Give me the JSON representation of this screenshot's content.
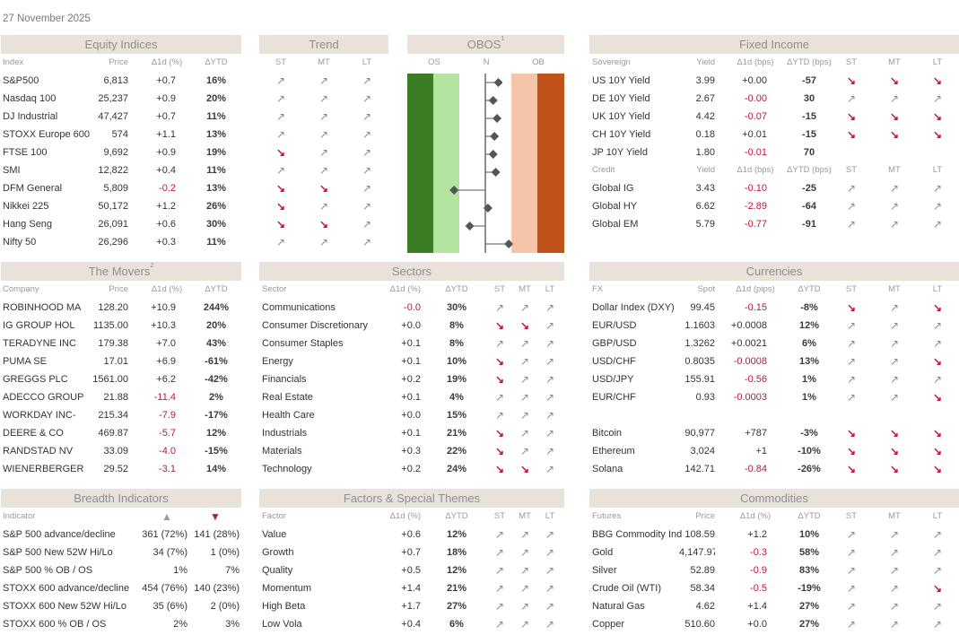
{
  "date": "27 November 2025",
  "colors": {
    "header_bg": "#e8e2da",
    "negative": "#c0143c",
    "os_dark": "#3a7d24",
    "os_light": "#b4e5a0",
    "ob_light": "#f5c5aa",
    "ob_dark": "#c0531a"
  },
  "icons": {
    "up": "↗",
    "down": "↘"
  },
  "equity": {
    "title": "Equity Indices",
    "headers": [
      "Index",
      "Price",
      "Δ1d (%)",
      "ΔYTD",
      "ST",
      "MT",
      "LT"
    ],
    "rows": [
      {
        "name": "S&P500",
        "price": "6,813",
        "d1": "+0.7",
        "ytd": "16%",
        "st": "up",
        "mt": "up",
        "lt": "up"
      },
      {
        "name": "Nasdaq 100",
        "price": "25,237",
        "d1": "+0.9",
        "ytd": "20%",
        "st": "up",
        "mt": "up",
        "lt": "up"
      },
      {
        "name": "DJ Industrial",
        "price": "47,427",
        "d1": "+0.7",
        "ytd": "11%",
        "st": "up",
        "mt": "up",
        "lt": "up"
      },
      {
        "name": "STOXX Europe 600",
        "price": "574",
        "d1": "+1.1",
        "ytd": "13%",
        "st": "up",
        "mt": "up",
        "lt": "up"
      },
      {
        "name": "FTSE 100",
        "price": "9,692",
        "d1": "+0.9",
        "ytd": "19%",
        "st": "down",
        "mt": "up",
        "lt": "up"
      },
      {
        "name": "SMI",
        "price": "12,822",
        "d1": "+0.4",
        "ytd": "11%",
        "st": "up",
        "mt": "up",
        "lt": "up"
      },
      {
        "name": "DFM General",
        "price": "5,809",
        "d1": "-0.2",
        "ytd": "13%",
        "st": "down",
        "mt": "down",
        "lt": "up"
      },
      {
        "name": "Nikkei 225",
        "price": "50,172",
        "d1": "+1.2",
        "ytd": "26%",
        "st": "down",
        "mt": "up",
        "lt": "up"
      },
      {
        "name": "Hang Seng",
        "price": "26,091",
        "d1": "+0.6",
        "ytd": "30%",
        "st": "down",
        "mt": "down",
        "lt": "up"
      },
      {
        "name": "Nifty 50",
        "price": "26,296",
        "d1": "+0.3",
        "ytd": "11%",
        "st": "up",
        "mt": "up",
        "lt": "up"
      }
    ]
  },
  "trend": {
    "title": "Trend"
  },
  "obos": {
    "title": "OBOS",
    "sup": "1",
    "labels": [
      "OS",
      "N",
      "OB"
    ],
    "values": [
      0.5,
      0.3,
      0.45,
      0.35,
      0.3,
      0.4,
      -1.2,
      0.1,
      -0.6,
      0.9
    ]
  },
  "fixed_income": {
    "title": "Fixed Income",
    "sov_headers": [
      "Sovereign",
      "Yield",
      "Δ1d (bps)",
      "ΔYTD (bps)",
      "ST",
      "MT",
      "LT"
    ],
    "sov_rows": [
      {
        "name": "US 10Y Yield",
        "v1": "3.99",
        "v2": "+0.00",
        "v3": "-57",
        "st": "down",
        "mt": "down",
        "lt": "down"
      },
      {
        "name": "DE 10Y Yield",
        "v1": "2.67",
        "v2": "-0.00",
        "v3": "30",
        "st": "up",
        "mt": "up",
        "lt": "up"
      },
      {
        "name": "UK 10Y Yield",
        "v1": "4.42",
        "v2": "-0.07",
        "v3": "-15",
        "st": "down",
        "mt": "down",
        "lt": "down"
      },
      {
        "name": "CH 10Y Yield",
        "v1": "0.18",
        "v2": "+0.01",
        "v3": "-15",
        "st": "down",
        "mt": "down",
        "lt": "down"
      },
      {
        "name": "JP 10Y Yield",
        "v1": "1.80",
        "v2": "-0.01",
        "v3": "70",
        "st": "",
        "mt": "",
        "lt": ""
      }
    ],
    "cred_headers": [
      "Credit",
      "Yield",
      "Δ1d (bps)",
      "ΔYTD (bps)",
      "ST",
      "MT",
      "LT"
    ],
    "cred_rows": [
      {
        "name": "Global IG",
        "v1": "3.43",
        "v2": "-0.10",
        "v3": "-25",
        "st": "up",
        "mt": "up",
        "lt": "up"
      },
      {
        "name": "Global HY",
        "v1": "6.62",
        "v2": "-2.89",
        "v3": "-64",
        "st": "up",
        "mt": "up",
        "lt": "up"
      },
      {
        "name": "Global EM",
        "v1": "5.79",
        "v2": "-0.77",
        "v3": "-91",
        "st": "up",
        "mt": "up",
        "lt": "up"
      }
    ]
  },
  "movers": {
    "title": "The Movers",
    "sup": "2",
    "headers": [
      "Company",
      "Price",
      "Δ1d (%)",
      "ΔYTD"
    ],
    "rows": [
      {
        "name": "ROBINHOOD MA",
        "price": "128.20",
        "d1": "+10.9",
        "ytd": "244%"
      },
      {
        "name": "IG GROUP HOL",
        "price": "1135.00",
        "d1": "+10.3",
        "ytd": "20%"
      },
      {
        "name": "TERADYNE INC",
        "price": "179.38",
        "d1": "+7.0",
        "ytd": "43%"
      },
      {
        "name": "PUMA SE",
        "price": "17.01",
        "d1": "+6.9",
        "ytd": "-61%"
      },
      {
        "name": "GREGGS PLC",
        "price": "1561.00",
        "d1": "+6.2",
        "ytd": "-42%"
      },
      {
        "name": "ADECCO GROUP",
        "price": "21.88",
        "d1": "-11.4",
        "ytd": "2%"
      },
      {
        "name": "WORKDAY INC-",
        "price": "215.34",
        "d1": "-7.9",
        "ytd": "-17%"
      },
      {
        "name": "DEERE & CO",
        "price": "469.87",
        "d1": "-5.7",
        "ytd": "12%"
      },
      {
        "name": "RANDSTAD NV",
        "price": "33.09",
        "d1": "-4.0",
        "ytd": "-15%"
      },
      {
        "name": "WIENERBERGER",
        "price": "29.52",
        "d1": "-3.1",
        "ytd": "14%"
      }
    ]
  },
  "sectors": {
    "title": "Sectors",
    "headers": [
      "Sector",
      "Δ1d (%)",
      "ΔYTD",
      "ST",
      "MT",
      "LT"
    ],
    "rows": [
      {
        "name": "Communications",
        "d1": "-0.0",
        "ytd": "30%",
        "st": "up",
        "mt": "up",
        "lt": "up"
      },
      {
        "name": "Consumer Discretionary",
        "d1": "+0.0",
        "ytd": "8%",
        "st": "down",
        "mt": "down",
        "lt": "up"
      },
      {
        "name": "Consumer Staples",
        "d1": "+0.1",
        "ytd": "8%",
        "st": "up",
        "mt": "up",
        "lt": "up"
      },
      {
        "name": "Energy",
        "d1": "+0.1",
        "ytd": "10%",
        "st": "down",
        "mt": "up",
        "lt": "up"
      },
      {
        "name": "Financials",
        "d1": "+0.2",
        "ytd": "19%",
        "st": "down",
        "mt": "up",
        "lt": "up"
      },
      {
        "name": "Real Estate",
        "d1": "+0.1",
        "ytd": "4%",
        "st": "up",
        "mt": "up",
        "lt": "up"
      },
      {
        "name": "Health Care",
        "d1": "+0.0",
        "ytd": "15%",
        "st": "up",
        "mt": "up",
        "lt": "up"
      },
      {
        "name": "Industrials",
        "d1": "+0.1",
        "ytd": "21%",
        "st": "down",
        "mt": "up",
        "lt": "up"
      },
      {
        "name": "Materials",
        "d1": "+0.3",
        "ytd": "22%",
        "st": "down",
        "mt": "up",
        "lt": "up"
      },
      {
        "name": "Technology",
        "d1": "+0.2",
        "ytd": "24%",
        "st": "down",
        "mt": "down",
        "lt": "up"
      }
    ]
  },
  "currencies": {
    "title": "Currencies",
    "headers": [
      "FX",
      "Spot",
      "Δ1d (pips)",
      "ΔYTD",
      "ST",
      "MT",
      "LT"
    ],
    "rows": [
      {
        "name": "Dollar Index (DXY)",
        "v1": "99.45",
        "v2": "-0.15",
        "v3": "-8%",
        "st": "down",
        "mt": "up",
        "lt": "down"
      },
      {
        "name": "EUR/USD",
        "v1": "1.1603",
        "v2": "+0.0008",
        "v3": "12%",
        "st": "up",
        "mt": "up",
        "lt": "up"
      },
      {
        "name": "GBP/USD",
        "v1": "1.3262",
        "v2": "+0.0021",
        "v3": "6%",
        "st": "up",
        "mt": "up",
        "lt": "up"
      },
      {
        "name": "USD/CHF",
        "v1": "0.8035",
        "v2": "-0.0008",
        "v3": "13%",
        "st": "up",
        "mt": "up",
        "lt": "down"
      },
      {
        "name": "USD/JPY",
        "v1": "155.91",
        "v2": "-0.56",
        "v3": "1%",
        "st": "up",
        "mt": "up",
        "lt": "up"
      },
      {
        "name": "EUR/CHF",
        "v1": "0.93",
        "v2": "-0.0003",
        "v3": "1%",
        "st": "up",
        "mt": "up",
        "lt": "down"
      }
    ],
    "crypto_rows": [
      {
        "name": "Bitcoin",
        "v1": "90,977",
        "v2": "+787",
        "v3": "-3%",
        "st": "down",
        "mt": "down",
        "lt": "down"
      },
      {
        "name": "Ethereum",
        "v1": "3,024",
        "v2": "+1",
        "v3": "-10%",
        "st": "down",
        "mt": "down",
        "lt": "down"
      },
      {
        "name": "Solana",
        "v1": "142.71",
        "v2": "-0.84",
        "v3": "-26%",
        "st": "down",
        "mt": "down",
        "lt": "down"
      }
    ]
  },
  "breadth": {
    "title": "Breadth Indicators",
    "header": "Indicator",
    "up_symbol": "▲",
    "down_symbol": "▼",
    "rows": [
      {
        "name": "S&P 500 advance/decline",
        "up": "361 (72%)",
        "down": "141 (28%)"
      },
      {
        "name": "S&P 500 New 52W Hi/Lo",
        "up": "34 (7%)",
        "down": "1 (0%)"
      },
      {
        "name": "S&P 500 % OB / OS",
        "up": "1%",
        "down": "7%"
      },
      {
        "name": "STOXX 600 advance/decline",
        "up": "454 (76%)",
        "down": "140 (23%)"
      },
      {
        "name": "STOXX 600 New 52W Hi/Lo",
        "up": "35 (6%)",
        "down": "2 (0%)"
      },
      {
        "name": "STOXX 600 % OB / OS",
        "up": "2%",
        "down": "3%"
      }
    ]
  },
  "factors": {
    "title": "Factors & Special Themes",
    "headers": [
      "Factor",
      "Δ1d (%)",
      "ΔYTD",
      "ST",
      "MT",
      "LT"
    ],
    "rows": [
      {
        "name": "Value",
        "d1": "+0.6",
        "ytd": "12%",
        "st": "up",
        "mt": "up",
        "lt": "up"
      },
      {
        "name": "Growth",
        "d1": "+0.7",
        "ytd": "18%",
        "st": "up",
        "mt": "up",
        "lt": "up"
      },
      {
        "name": "Quality",
        "d1": "+0.5",
        "ytd": "12%",
        "st": "up",
        "mt": "up",
        "lt": "up"
      },
      {
        "name": "Momentum",
        "d1": "+1.4",
        "ytd": "21%",
        "st": "up",
        "mt": "up",
        "lt": "up"
      },
      {
        "name": "High Beta",
        "d1": "+1.7",
        "ytd": "27%",
        "st": "up",
        "mt": "up",
        "lt": "up"
      },
      {
        "name": "Low Vola",
        "d1": "+0.4",
        "ytd": "6%",
        "st": "up",
        "mt": "up",
        "lt": "up"
      }
    ]
  },
  "commodities": {
    "title": "Commodities",
    "headers": [
      "Futures",
      "Price",
      "Δ1d (%)",
      "ΔYTD",
      "ST",
      "MT",
      "LT"
    ],
    "rows": [
      {
        "name": "BBG Commodity Ind",
        "v1": "108.59",
        "v2": "+1.2",
        "v3": "10%",
        "st": "up",
        "mt": "up",
        "lt": "up"
      },
      {
        "name": "Gold",
        "v1": "4,147.97",
        "v2": "-0.3",
        "v3": "58%",
        "st": "up",
        "mt": "up",
        "lt": "up"
      },
      {
        "name": "Silver",
        "v1": "52.89",
        "v2": "-0.9",
        "v3": "83%",
        "st": "up",
        "mt": "up",
        "lt": "up"
      },
      {
        "name": "Crude Oil (WTI)",
        "v1": "58.34",
        "v2": "-0.5",
        "v3": "-19%",
        "st": "up",
        "mt": "up",
        "lt": "down"
      },
      {
        "name": "Natural Gas",
        "v1": "4.62",
        "v2": "+1.4",
        "v3": "27%",
        "st": "up",
        "mt": "up",
        "lt": "up"
      },
      {
        "name": "Copper",
        "v1": "510.60",
        "v2": "+0.0",
        "v3": "27%",
        "st": "up",
        "mt": "up",
        "lt": "up"
      }
    ]
  }
}
